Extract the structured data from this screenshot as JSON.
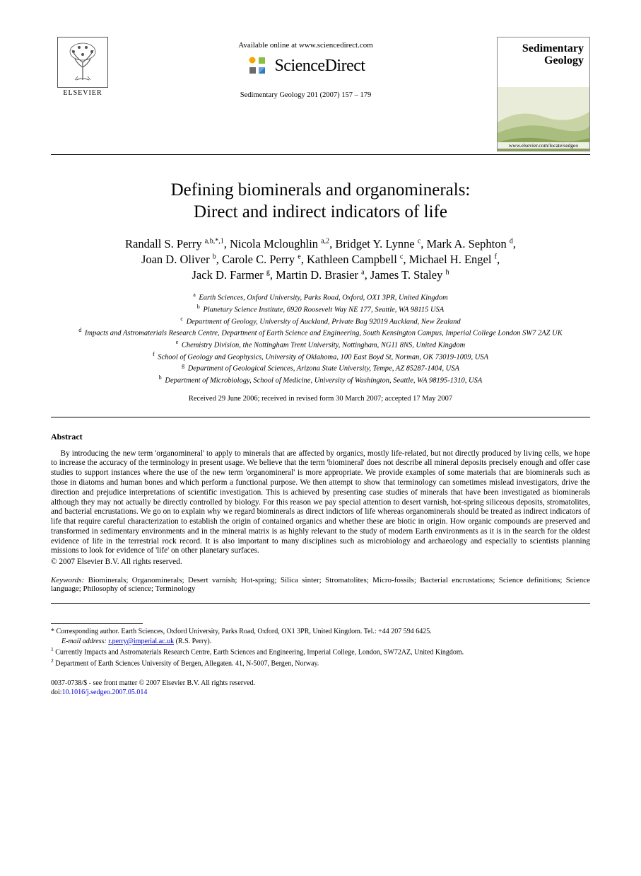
{
  "header": {
    "publisher_name": "ELSEVIER",
    "available_online": "Available online at www.sciencedirect.com",
    "sciencedirect_label": "ScienceDirect",
    "citation": "Sedimentary Geology 201 (2007) 157 – 179",
    "journal_cover_title_line1": "Sedimentary",
    "journal_cover_title_line2": "Geology",
    "journal_url": "www.elsevier.com/locate/sedgeo",
    "sd_icon_colors": [
      "#f7a600",
      "#8bbf3f",
      "#2e7bbd",
      "#6a6a6a"
    ]
  },
  "title": {
    "line1": "Defining biominerals and organominerals:",
    "line2": "Direct and indirect indicators of life"
  },
  "authors_html": "Randall S. Perry <sup>a,b,*,1</sup>, Nicola Mcloughlin <sup>a,2</sup>, Bridget Y. Lynne <sup>c</sup>, Mark A. Sephton <sup>d</sup>,<br>Joan D. Oliver <sup>b</sup>, Carole C. Perry <sup>e</sup>, Kathleen Campbell <sup>c</sup>, Michael H. Engel <sup>f</sup>,<br>Jack D. Farmer <sup>g</sup>, Martin D. Brasier <sup>a</sup>, James T. Staley <sup>h</sup>",
  "affiliations": [
    {
      "key": "a",
      "text": "Earth Sciences, Oxford University, Parks Road, Oxford, OX1 3PR, United Kingdom"
    },
    {
      "key": "b",
      "text": "Planetary Science Institute, 6920 Roosevelt Way NE 177, Seattle, WA 98115 USA"
    },
    {
      "key": "c",
      "text": "Department of Geology, University of Auckland, Private Bag 92019 Auckland, New Zealand"
    },
    {
      "key": "d",
      "text": "Impacts and Astromaterials Research Centre, Department of Earth Science and Engineering, South Kensington Campus, Imperial College London SW7 2AZ UK"
    },
    {
      "key": "e",
      "text": "Chemistry Division, the Nottingham Trent University, Nottingham, NG11 8NS, United Kingdom"
    },
    {
      "key": "f",
      "text": "School of Geology and Geophysics, University of Oklahoma, 100 East Boyd St, Norman, OK 73019-1009, USA"
    },
    {
      "key": "g",
      "text": "Department of Geological Sciences, Arizona State University, Tempe, AZ 85287-1404, USA"
    },
    {
      "key": "h",
      "text": "Department of Microbiology, School of Medicine, University of Washington, Seattle, WA 98195-1310, USA"
    }
  ],
  "dates": "Received 29 June 2006; received in revised form 30 March 2007; accepted 17 May 2007",
  "abstract": {
    "heading": "Abstract",
    "body": "By introducing the new term 'organomineral' to apply to minerals that are affected by organics, mostly life-related, but not directly produced by living cells, we hope to increase the accuracy of the terminology in present usage. We believe that the term 'biomineral' does not describe all mineral deposits precisely enough and offer case studies to support instances where the use of the new term 'organomineral' is more appropriate. We provide examples of some materials that are biominerals such as those in diatoms and human bones and which perform a functional purpose. We then attempt to show that terminology can sometimes mislead investigators, drive the direction and prejudice interpretations of scientific investigation. This is achieved by presenting case studies of minerals that have been investigated as biominerals although they may not actually be directly controlled by biology. For this reason we pay special attention to desert varnish, hot-spring siliceous deposits, stromatolites, and bacterial encrustations. We go on to explain why we regard biominerals as direct indictors of life whereas organominerals should be treated as indirect indicators of life that require careful characterization to establish the origin of contained organics and whether these are biotic in origin. How organic compounds are preserved and transformed in sedimentary environments and in the mineral matrix is as highly relevant to the study of modern Earth environments as it is in the search for the oldest evidence of life in the terrestrial rock record. It is also important to many disciplines such as microbiology and archaeology and especially to scientists planning missions to look for evidence of 'life' on other planetary surfaces.",
    "copyright": "© 2007 Elsevier B.V. All rights reserved."
  },
  "keywords": {
    "label": "Keywords:",
    "text": "Biominerals; Organominerals; Desert varnish; Hot-spring; Silica sinter; Stromatolites; Micro-fossils; Bacterial encrustations; Science definitions; Science language; Philosophy of science; Terminology"
  },
  "footnotes": {
    "corresponding": "* Corresponding author. Earth Sciences, Oxford University, Parks Road, Oxford, OX1 3PR, United Kingdom. Tel.: +44 207 594 6425.",
    "email_label": "E-mail address:",
    "email": "r.perry@imperial.ac.uk",
    "email_attr": " (R.S. Perry).",
    "note1": "Currently Impacts and Astromaterials Research Centre, Earth Sciences and Engineering, Imperial College, London, SW72AZ, United Kingdom.",
    "note2": "Department of Earth Sciences University of Bergen, Allegaten. 41, N-5007, Bergen, Norway."
  },
  "footer": {
    "line1": "0037-0738/$ - see front matter © 2007 Elsevier B.V. All rights reserved.",
    "doi_label": "doi:",
    "doi": "10.1016/j.sedgeo.2007.05.014"
  },
  "colors": {
    "text": "#000000",
    "link": "#0000d0",
    "rule": "#000000",
    "background": "#ffffff"
  },
  "fonts": {
    "body_family": "Times New Roman",
    "title_size_pt": 19,
    "authors_size_pt": 12.5,
    "affil_size_pt": 8,
    "abstract_size_pt": 8.5,
    "footnote_size_pt": 7.5
  }
}
